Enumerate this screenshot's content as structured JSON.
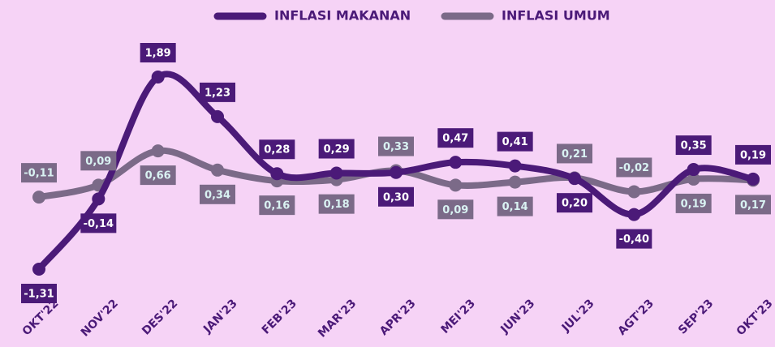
{
  "chart_data": {
    "type": "line",
    "categories": [
      "OKT'22",
      "NOV'22",
      "DES'22",
      "JAN'23",
      "FEB'23",
      "MAR'23",
      "APR'23",
      "MEI'23",
      "JUN'23",
      "JUL'23",
      "AGT'23",
      "SEP'23",
      "OKT'23"
    ],
    "series": [
      {
        "name": "INFLASI MAKANAN",
        "color": "#4b1a78",
        "values": [
          -1.31,
          -0.14,
          1.89,
          1.23,
          0.28,
          0.29,
          0.3,
          0.47,
          0.41,
          0.2,
          -0.4,
          0.35,
          0.19
        ],
        "value_labels": [
          "-1,31",
          "-0,14",
          "1,89",
          "1,23",
          "0,28",
          "0,29",
          "0,30",
          "0,47",
          "0,41",
          "0,20",
          "-0,40",
          "0,35",
          "0,19"
        ]
      },
      {
        "name": "INFLASI UMUM",
        "color": "#7b6a88",
        "values": [
          -0.11,
          0.09,
          0.66,
          0.34,
          0.16,
          0.18,
          0.33,
          0.09,
          0.14,
          0.21,
          -0.02,
          0.19,
          0.17
        ],
        "value_labels": [
          "-0,11",
          "0,09",
          "0,66",
          "0,34",
          "0,16",
          "0,18",
          "0,33",
          "0,09",
          "0,14",
          "0,21",
          "-0,02",
          "0,19",
          "0,17"
        ]
      }
    ],
    "legend": "top"
  }
}
